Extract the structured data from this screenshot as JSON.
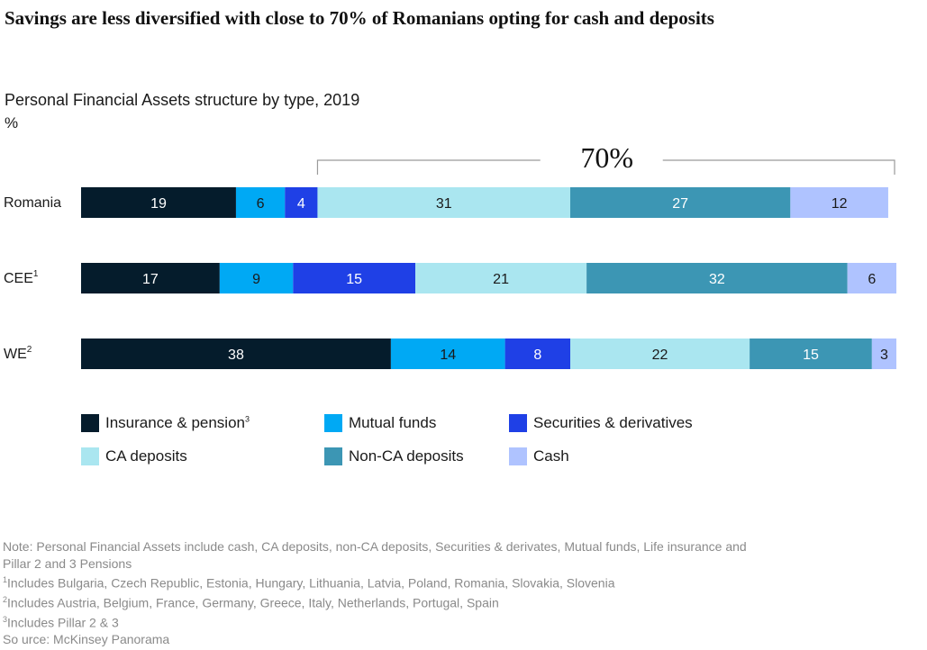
{
  "title": "Savings are less diversified with close to 70% of Romanians opting for cash and deposits",
  "subtitle": "Personal Financial Assets structure by type, 2019",
  "unit": "%",
  "bracket_label": "70%",
  "chart_data": {
    "type": "bar",
    "orientation": "horizontal",
    "stacked": true,
    "categories": [
      {
        "label": "Romania",
        "sup": ""
      },
      {
        "label": "CEE",
        "sup": "1"
      },
      {
        "label": "WE",
        "sup": "2"
      }
    ],
    "series": [
      {
        "name": "Insurance & pension",
        "sup": "3",
        "color": "#051c2c",
        "text_color": "#ffffff",
        "values": [
          19,
          17,
          38
        ]
      },
      {
        "name": "Mutual funds",
        "sup": "",
        "color": "#00a9f4",
        "text_color": "#1a1a1a",
        "values": [
          6,
          9,
          14
        ]
      },
      {
        "name": "Securities & derivatives",
        "sup": "",
        "color": "#1f40e6",
        "text_color": "#ffffff",
        "values": [
          4,
          15,
          8
        ]
      },
      {
        "name": "CA deposits",
        "sup": "",
        "color": "#aae6f0",
        "text_color": "#1a1a1a",
        "values": [
          31,
          21,
          22
        ]
      },
      {
        "name": "Non-CA deposits",
        "sup": "",
        "color": "#3c96b4",
        "text_color": "#ffffff",
        "values": [
          27,
          32,
          15
        ]
      },
      {
        "name": "Cash",
        "sup": "",
        "color": "#afc3ff",
        "text_color": "#1a1a1a",
        "values": [
          12,
          6,
          3
        ]
      }
    ],
    "xlim": [
      0,
      100
    ],
    "legend_position": "bottom",
    "grid": false
  },
  "notes": {
    "note": "Note: Personal Financial Assets include cash, CA deposits, non-CA deposits, Securities & derivates, Mutual funds, Life insurance and Pillar 2 and 3 Pensions",
    "fn1_mark": "1",
    "fn1": "Includes Bulgaria, Czech Republic, Estonia, Hungary, Lithuania, Latvia, Poland, Romania, Slovakia, Slovenia",
    "fn2_mark": "2",
    "fn2": "Includes Austria, Belgium, France, Germany, Greece, Italy, Netherlands, Portugal, Spain",
    "fn3_mark": "3",
    "fn3": "Includes Pillar 2 & 3",
    "source": "So urce: McKinsey Panorama"
  }
}
